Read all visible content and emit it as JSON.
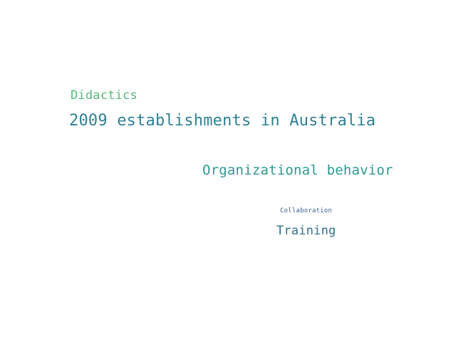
{
  "word_cloud": {
    "words": [
      {
        "text": "Didactics",
        "color": "#57b97b"
      },
      {
        "text": "2009 establishments in Australia",
        "color": "#2f7f95"
      },
      {
        "text": "Organizational behavior",
        "color": "#2a9a93"
      },
      {
        "text": "Collaboration",
        "color": "#3a5f95"
      },
      {
        "text": "Training",
        "color": "#2f6f8f"
      }
    ]
  }
}
